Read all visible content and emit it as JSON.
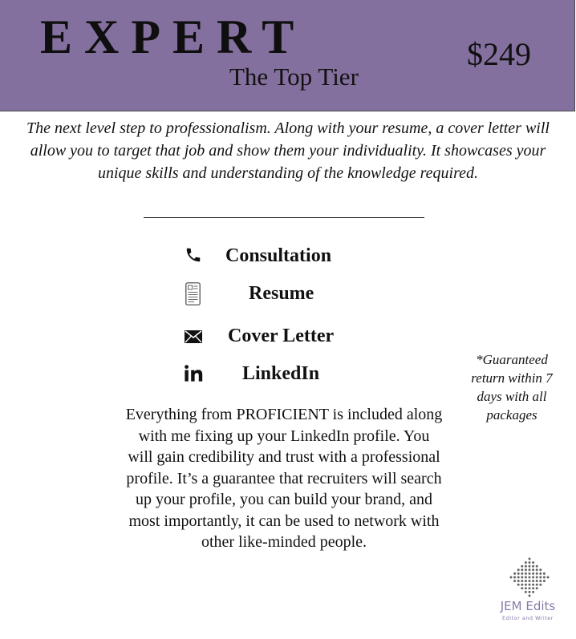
{
  "header": {
    "title": "EXPERT",
    "subtitle": "The Top Tier",
    "price": "$249"
  },
  "intro": "The next level step to professionalism. Along with your resume, a cover letter will allow you to target that job and show them your individuality. It showcases your unique skills and understanding of the knowledge required.",
  "services": [
    {
      "label": "Consultation",
      "icon": "phone-icon"
    },
    {
      "label": "Resume",
      "icon": "document-icon"
    },
    {
      "label": "Cover Letter",
      "icon": "envelope-icon"
    },
    {
      "label": "LinkedIn",
      "icon": "linkedin-icon"
    }
  ],
  "guarantee_note": "*Guaranteed return within 7 days with all packages",
  "description": "Everything from PROFICIENT is included along with me fixing up your LinkedIn profile. You will gain credibility and trust with a professional profile. It’s a guarantee that recruiters will search up your profile, you can build your brand, and most importantly, it can be used to network with other like-minded people.",
  "logo": {
    "name": "JEM Edits",
    "tagline": "Editor and Writer"
  },
  "colors": {
    "header_bg": "#84709e",
    "logo_accent": "#8a7aa8"
  }
}
